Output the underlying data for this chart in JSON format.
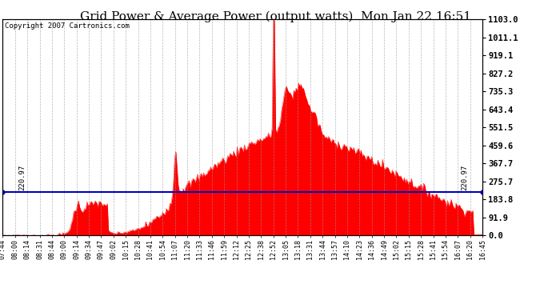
{
  "title": "Grid Power & Average Power (output watts)  Mon Jan 22 16:51",
  "copyright": "Copyright 2007 Cartronics.com",
  "average_line_value": 220.97,
  "average_label": "220.97",
  "y_max": 1103.0,
  "y_min": 0.0,
  "y_ticks": [
    0.0,
    91.9,
    183.8,
    275.7,
    367.7,
    459.6,
    551.5,
    643.4,
    735.3,
    827.2,
    919.1,
    1011.1,
    1103.0
  ],
  "fill_color": "#FF0000",
  "line_color": "#FF0000",
  "avg_line_color": "#0000BB",
  "background_color": "#FFFFFF",
  "plot_bg_color": "#FFFFFF",
  "grid_color": "#999999",
  "title_fontsize": 11,
  "x_labels": [
    "07:44",
    "08:00",
    "08:14",
    "08:31",
    "08:44",
    "09:00",
    "09:14",
    "09:34",
    "09:47",
    "09:02",
    "10:15",
    "10:28",
    "10:41",
    "10:54",
    "11:07",
    "11:20",
    "11:33",
    "11:46",
    "11:59",
    "12:12",
    "12:25",
    "12:38",
    "12:52",
    "13:05",
    "13:18",
    "13:31",
    "13:44",
    "13:57",
    "14:10",
    "14:23",
    "14:36",
    "14:49",
    "15:02",
    "15:15",
    "15:28",
    "15:41",
    "15:54",
    "16:07",
    "16:20",
    "16:45"
  ],
  "n_points": 400,
  "seed": 7
}
